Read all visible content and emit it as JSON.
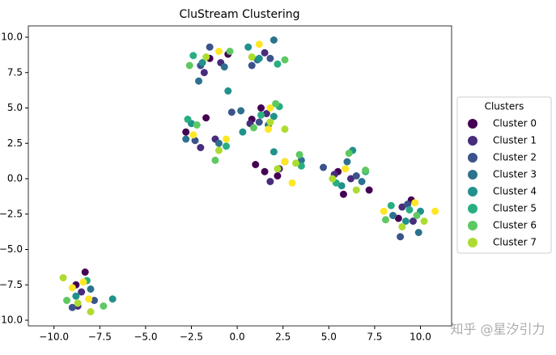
{
  "chart_data": {
    "type": "scatter",
    "title": "CluStream Clustering",
    "xlim": [
      -11.4,
      11.7
    ],
    "ylim": [
      -10.4,
      10.8
    ],
    "xticks": [
      {
        "value": -10,
        "label": "−10.0"
      },
      {
        "value": -7.5,
        "label": "−7.5"
      },
      {
        "value": -5,
        "label": "−5.0"
      },
      {
        "value": -2.5,
        "label": "−2.5"
      },
      {
        "value": 0,
        "label": "0.0"
      },
      2.5,
      {
        "value": 5,
        "label": "5.0"
      },
      7.5,
      {
        "value": 10,
        "label": "10.0"
      }
    ],
    "yticks": [
      {
        "value": -10,
        "label": "−10.0"
      },
      {
        "value": -7.5,
        "label": "−7.5"
      },
      {
        "value": -5,
        "label": "−5.0"
      },
      {
        "value": -2.5,
        "label": "−2.5"
      },
      {
        "value": 0,
        "label": "0.0"
      },
      2.5,
      {
        "value": 5,
        "label": "5.0"
      },
      7.5,
      {
        "value": 10,
        "label": "10.0"
      }
    ],
    "legend": "right",
    "legend_title": "Clusters",
    "series": [
      {
        "name": "Cluster 0",
        "color": "#440154",
        "x": [
          -8.8,
          -8.3,
          -2.8,
          -1.7,
          -1.5,
          -0.5,
          1.3,
          0.8,
          1.5,
          2.2,
          1.0,
          5.5,
          5.8,
          7.2,
          9.5,
          8.8
        ],
        "values": [
          -7.5,
          -6.6,
          3.3,
          4.3,
          8.5,
          8.8,
          5.0,
          4.2,
          0.5,
          0.2,
          1.0,
          0.5,
          -1.1,
          -0.8,
          -1.5,
          -2.8
        ]
      },
      {
        "name": "Cluster 1",
        "color": "#472d7b",
        "x": [
          -8.5,
          -8.7,
          -2.0,
          -1.2,
          -1.8,
          -0.9,
          1.5,
          0.7,
          1.6,
          2.3,
          1.8,
          6.2,
          5.3,
          9.0,
          9.6
        ],
        "values": [
          -8.0,
          -9.0,
          2.2,
          2.8,
          7.5,
          8.2,
          8.9,
          3.9,
          4.6,
          0.7,
          -0.2,
          0.0,
          0.3,
          -2.0,
          -3.0
        ]
      },
      {
        "name": "Cluster 2",
        "color": "#3b528b",
        "x": [
          -9.0,
          -7.8,
          -2.3,
          -1.5,
          -2.0,
          0.8,
          1.8,
          1.2,
          -0.3,
          2.6,
          4.7,
          6.5,
          8.9,
          9.3
        ],
        "values": [
          -9.1,
          -8.6,
          2.7,
          9.3,
          8.0,
          8.0,
          8.5,
          4.0,
          4.7,
          1.2,
          0.8,
          0.2,
          -4.1,
          -1.8
        ]
      },
      {
        "name": "Cluster 3",
        "color": "#2c728e",
        "x": [
          -8.0,
          -1.0,
          -2.8,
          -2.1,
          -0.7,
          2.0,
          1.1,
          0.2,
          1.7,
          3.5,
          6.0,
          6.8,
          9.9,
          8.5
        ],
        "values": [
          -7.8,
          2.5,
          2.8,
          6.9,
          7.9,
          9.8,
          8.4,
          4.8,
          3.8,
          1.3,
          1.2,
          -0.2,
          -3.8,
          -2.6
        ]
      },
      {
        "name": "Cluster 4",
        "color": "#21918c",
        "x": [
          -8.8,
          -6.8,
          -2.5,
          -1.9,
          -0.5,
          1.2,
          0.6,
          2.0,
          0.3,
          2.0,
          5.7,
          6.3,
          9.2,
          10.0
        ],
        "values": [
          -8.3,
          -8.5,
          3.9,
          8.2,
          6.2,
          8.5,
          9.3,
          4.4,
          3.3,
          1.9,
          -0.5,
          2.0,
          -3.0,
          -2.3
        ]
      },
      {
        "name": "Cluster 5",
        "color": "#28ae80",
        "x": [
          -8.2,
          -2.7,
          -0.6,
          -2.4,
          2.2,
          1.3,
          2.3,
          3.5,
          7.0,
          5.4,
          9.4,
          8.4
        ],
        "values": [
          -7.2,
          4.2,
          2.3,
          8.7,
          8.1,
          4.5,
          5.1,
          0.9,
          0.5,
          -0.3,
          -2.2,
          -1.9
        ]
      },
      {
        "name": "Cluster 6",
        "color": "#5ec962",
        "x": [
          -9.3,
          -7.3,
          -2.2,
          -1.2,
          -2.6,
          -0.4,
          2.6,
          0.9,
          2.1,
          3.4,
          6.1,
          7.0,
          9.8,
          8.1
        ],
        "values": [
          -8.6,
          -9.0,
          3.8,
          1.3,
          8.0,
          9.0,
          8.4,
          3.6,
          5.3,
          1.7,
          1.8,
          0.6,
          -2.6,
          -2.9
        ]
      },
      {
        "name": "Cluster 7",
        "color": "#addc30",
        "x": [
          -9.5,
          -8.0,
          -8.7,
          -1.0,
          -1.7,
          0.8,
          2.6,
          1.8,
          2.2,
          3.2,
          5.2,
          6.5,
          9.0,
          10.2
        ],
        "values": [
          -7.0,
          -9.4,
          -8.8,
          2.0,
          8.6,
          8.6,
          3.5,
          4.0,
          0.7,
          1.1,
          0.0,
          -0.8,
          -3.4,
          -3.0
        ]
      },
      {
        "color": "#fde725",
        "x": [
          -9.0,
          -8.1,
          -8.4,
          -2.4,
          -0.6,
          -1.0,
          1.2,
          1.8,
          1.7,
          2.6,
          3.0,
          5.9,
          8.0,
          10.8,
          9.7
        ],
        "values": [
          -7.7,
          -8.5,
          -7.3,
          3.1,
          2.8,
          9.0,
          9.5,
          5.0,
          3.5,
          1.2,
          -0.3,
          0.7,
          -2.3,
          -2.3,
          -1.7
        ]
      }
    ]
  },
  "watermark": "知乎 @星汐引力"
}
